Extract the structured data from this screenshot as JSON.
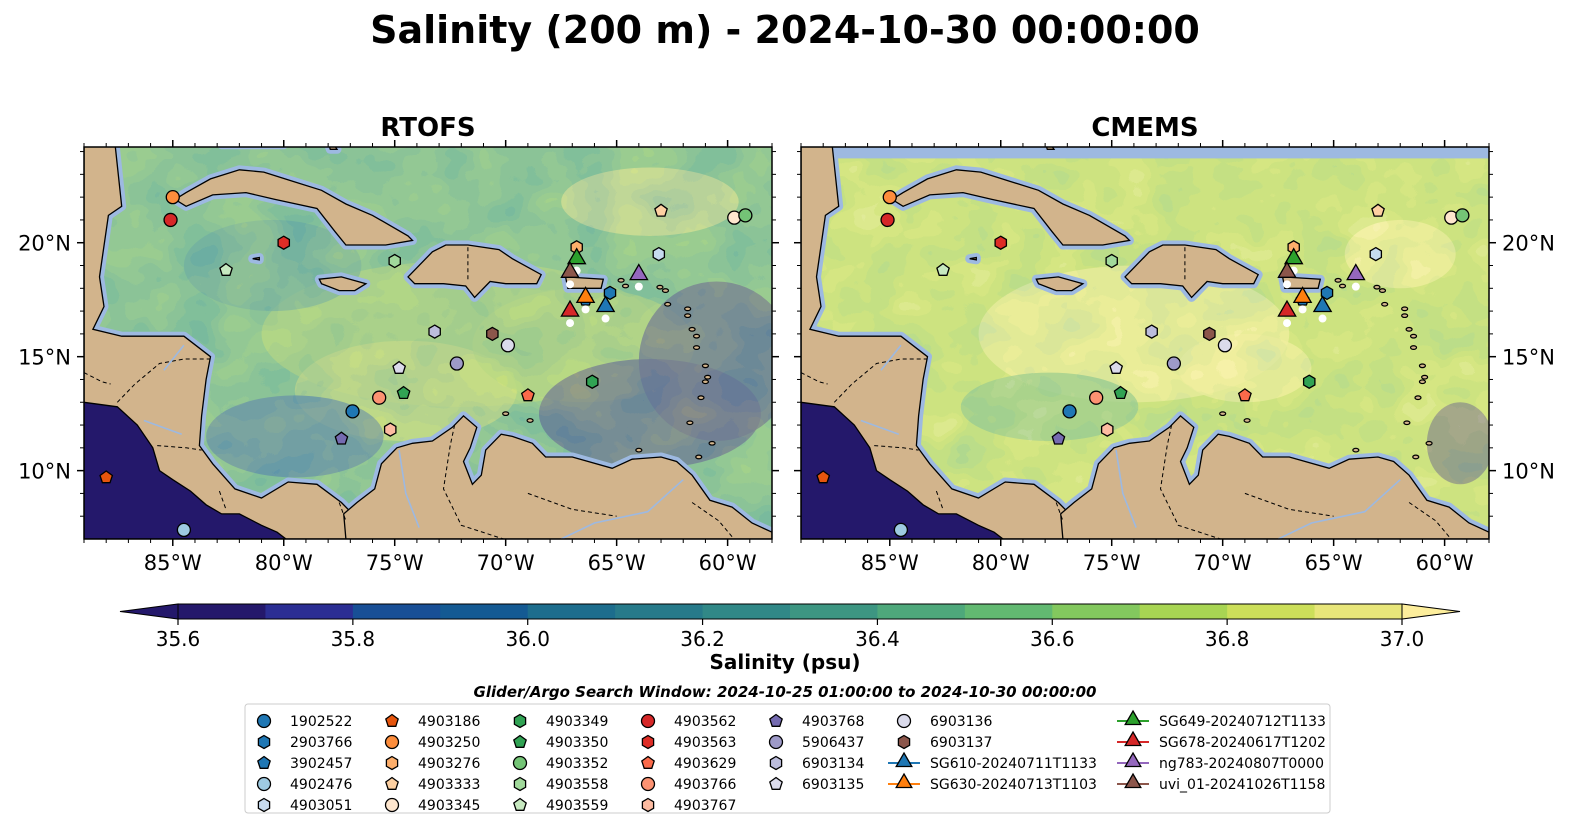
{
  "figure": {
    "title": "Salinity (200 m) - 2024-10-30 00:00:00",
    "search_window": "Glider/Argo Search Window: 2024-10-25 01:00:00 to 2024-10-30 00:00:00"
  },
  "chart_data": {
    "type": "heatmap",
    "title": "Salinity (200 m) - 2024-10-30 00:00:00",
    "panels": [
      {
        "title": "RTOFS"
      },
      {
        "title": "CMEMS"
      }
    ],
    "x_ticks": [
      -85,
      -80,
      -75,
      -70,
      -65,
      -60
    ],
    "x_tick_labels": [
      "85°W",
      "80°W",
      "75°W",
      "70°W",
      "65°W",
      "60°W"
    ],
    "y_ticks": [
      10,
      15,
      20
    ],
    "y_tick_labels": [
      "10°N",
      "15°N",
      "20°N"
    ],
    "xlim": [
      -89,
      -58
    ],
    "ylim": [
      7,
      24.2
    ],
    "colorbar": {
      "label": "Salinity (psu)",
      "min": 35.6,
      "max": 37.0,
      "step": 0.1,
      "ticks": [
        "35.6",
        "35.8",
        "36.0",
        "36.2",
        "36.4",
        "36.6",
        "36.8",
        "37.0"
      ],
      "colors": [
        "#24186b",
        "#2b2e93",
        "#184f96",
        "#145a93",
        "#1d6d8d",
        "#277a8a",
        "#318887",
        "#3d9682",
        "#4ea87b",
        "#62b971",
        "#83c85e",
        "#a8d553",
        "#ccdf5a",
        "#e8e67a"
      ],
      "extend": "both",
      "under_color": "#24186b",
      "over_color": "#fdee9c"
    },
    "floats": [
      {
        "id": "1902522",
        "marker": "circle",
        "color": "#1f77b4",
        "lon": -76.9,
        "lat": 12.6
      },
      {
        "id": "2903766",
        "marker": "hexagon",
        "color": "#1f77b4",
        "lon": -65.3,
        "lat": 17.8
      },
      {
        "id": "3902457",
        "marker": "pentagon",
        "color": "#1f77b4",
        "lon": -66.4,
        "lat": 17.5
      },
      {
        "id": "4902476",
        "marker": "circle",
        "color": "#9ecae1",
        "lon": -84.5,
        "lat": 7.4
      },
      {
        "id": "4903051",
        "marker": "hexagon",
        "color": "#c6dbef",
        "lon": -63.1,
        "lat": 19.5
      },
      {
        "id": "4903186",
        "marker": "pentagon",
        "color": "#e6550d",
        "lon": -88.0,
        "lat": 9.7
      },
      {
        "id": "4903250",
        "marker": "circle",
        "color": "#fd8d3c",
        "lon": -85.0,
        "lat": 22.0
      },
      {
        "id": "4903276",
        "marker": "hexagon",
        "color": "#fdae6b",
        "lon": -66.8,
        "lat": 19.8
      },
      {
        "id": "4903333",
        "marker": "pentagon",
        "color": "#fdd0a2",
        "lon": -63.0,
        "lat": 21.4
      },
      {
        "id": "4903345",
        "marker": "circle",
        "color": "#fee6ce",
        "lon": -59.7,
        "lat": 21.1
      },
      {
        "id": "4903349",
        "marker": "hexagon",
        "color": "#31a354",
        "lon": -66.1,
        "lat": 13.9
      },
      {
        "id": "4903350",
        "marker": "pentagon",
        "color": "#31a354",
        "lon": -74.6,
        "lat": 13.4
      },
      {
        "id": "4903352",
        "marker": "circle",
        "color": "#74c476",
        "lon": -59.2,
        "lat": 21.2
      },
      {
        "id": "4903558",
        "marker": "hexagon",
        "color": "#a1d99b",
        "lon": -75.0,
        "lat": 19.2
      },
      {
        "id": "4903559",
        "marker": "pentagon",
        "color": "#c7e9c0",
        "lon": -82.6,
        "lat": 18.8
      },
      {
        "id": "4903562",
        "marker": "circle",
        "color": "#d62728",
        "lon": -85.1,
        "lat": 21.0
      },
      {
        "id": "4903563",
        "marker": "hexagon",
        "color": "#de2d26",
        "lon": -80.0,
        "lat": 20.0
      },
      {
        "id": "4903629",
        "marker": "pentagon",
        "color": "#fb6a4a",
        "lon": -69.0,
        "lat": 13.3
      },
      {
        "id": "4903766",
        "marker": "circle",
        "color": "#fc9272",
        "lon": -75.7,
        "lat": 13.2
      },
      {
        "id": "4903767",
        "marker": "hexagon",
        "color": "#fcbba1",
        "lon": -75.2,
        "lat": 11.8
      },
      {
        "id": "4903768",
        "marker": "pentagon",
        "color": "#756bb1",
        "lon": -77.4,
        "lat": 11.4
      },
      {
        "id": "5906437",
        "marker": "circle",
        "color": "#9e9ac8",
        "lon": -72.2,
        "lat": 14.7
      },
      {
        "id": "6903134",
        "marker": "hexagon",
        "color": "#bcbddc",
        "lon": -73.2,
        "lat": 16.1
      },
      {
        "id": "6903135",
        "marker": "pentagon",
        "color": "#dadaeb",
        "lon": -74.8,
        "lat": 14.5
      },
      {
        "id": "6903136",
        "marker": "circle",
        "color": "#dadaeb",
        "lon": -69.9,
        "lat": 15.5
      },
      {
        "id": "6903137",
        "marker": "hexagon",
        "color": "#8c564b",
        "lon": -70.6,
        "lat": 16.0
      }
    ],
    "gliders": [
      {
        "id": "SG610-20240711T1133",
        "marker": "triangle",
        "color": "#1f77b4",
        "lon": -65.5,
        "lat": 17.2
      },
      {
        "id": "SG630-20240713T1103",
        "marker": "triangle",
        "color": "#ff7f0e",
        "lon": -66.4,
        "lat": 17.6
      },
      {
        "id": "SG649-20240712T1133",
        "marker": "triangle",
        "color": "#2ca02c",
        "lon": -66.8,
        "lat": 19.3
      },
      {
        "id": "SG678-20240617T1202",
        "marker": "triangle",
        "color": "#d62728",
        "lon": -67.1,
        "lat": 17.0
      },
      {
        "id": "ng783-20240807T0000",
        "marker": "triangle",
        "color": "#9467bd",
        "lon": -64.0,
        "lat": 18.6
      },
      {
        "id": "uvi_01-20241026T1158",
        "marker": "triangle",
        "color": "#8c564b",
        "lon": -67.1,
        "lat": 18.7
      }
    ],
    "legend_location": "bottom-center",
    "colors": {
      "land": "#d2b48c",
      "shelf": "#9db9e1",
      "coast": "#000000"
    }
  }
}
